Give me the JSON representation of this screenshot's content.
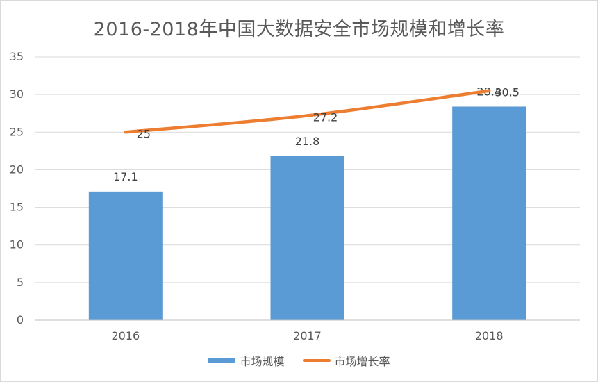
{
  "chart_data": {
    "type": "bar",
    "title": "2016-2018年中国大数据安全市场规模和增长率",
    "categories": [
      "2016",
      "2017",
      "2018"
    ],
    "ylim": [
      0,
      35
    ],
    "yticks": [
      0,
      5,
      10,
      15,
      20,
      25,
      30,
      35
    ],
    "ytick_labels": [
      "0",
      "5",
      "10",
      "15",
      "20",
      "25",
      "30",
      "35"
    ],
    "grid": true,
    "legend_position": "bottom",
    "series": [
      {
        "name": "市场规模",
        "type": "bar",
        "color": "#5B9BD5",
        "values": [
          17.1,
          21.8,
          28.4
        ],
        "labels": [
          "17.1",
          "21.8",
          "28.4"
        ]
      },
      {
        "name": "市场增长率",
        "type": "line",
        "color": "#ED7D31",
        "values": [
          25,
          27.2,
          30.5
        ],
        "labels": [
          "25",
          "27.2",
          "30.5"
        ]
      }
    ]
  }
}
